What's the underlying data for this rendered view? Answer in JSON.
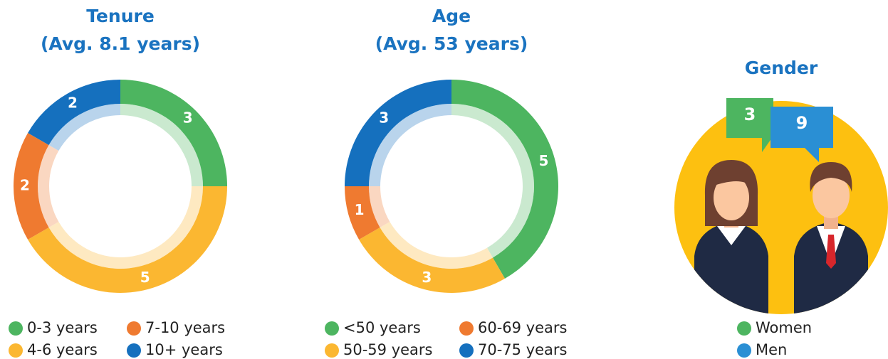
{
  "chart_data": [
    {
      "type": "donut",
      "title": "Tenure",
      "subtitle": "(Avg. 8.1 years)",
      "categories": [
        "0-3 years",
        "4-6 years",
        "7-10 years",
        "10+ years"
      ],
      "values": [
        3,
        5,
        2,
        2
      ],
      "colors": [
        "#4db560",
        "#fbb731",
        "#ef7a30",
        "#1570be"
      ],
      "slice_order": [
        0,
        1,
        2,
        3
      ]
    },
    {
      "type": "donut",
      "title": "Age",
      "subtitle": "(Avg. 53 years)",
      "categories": [
        "<50 years",
        "50-59 years",
        "60-69 years",
        "70-75 years"
      ],
      "values": [
        5,
        3,
        1,
        3
      ],
      "colors": [
        "#4db560",
        "#fbb731",
        "#ef7a30",
        "#1570be"
      ],
      "slice_order": [
        0,
        1,
        2,
        3
      ]
    },
    {
      "type": "bubbles",
      "title": "Gender",
      "categories": [
        "Women",
        "Men"
      ],
      "values": [
        3,
        9
      ],
      "colors": [
        "#4db560",
        "#2a8fd4"
      ]
    }
  ]
}
